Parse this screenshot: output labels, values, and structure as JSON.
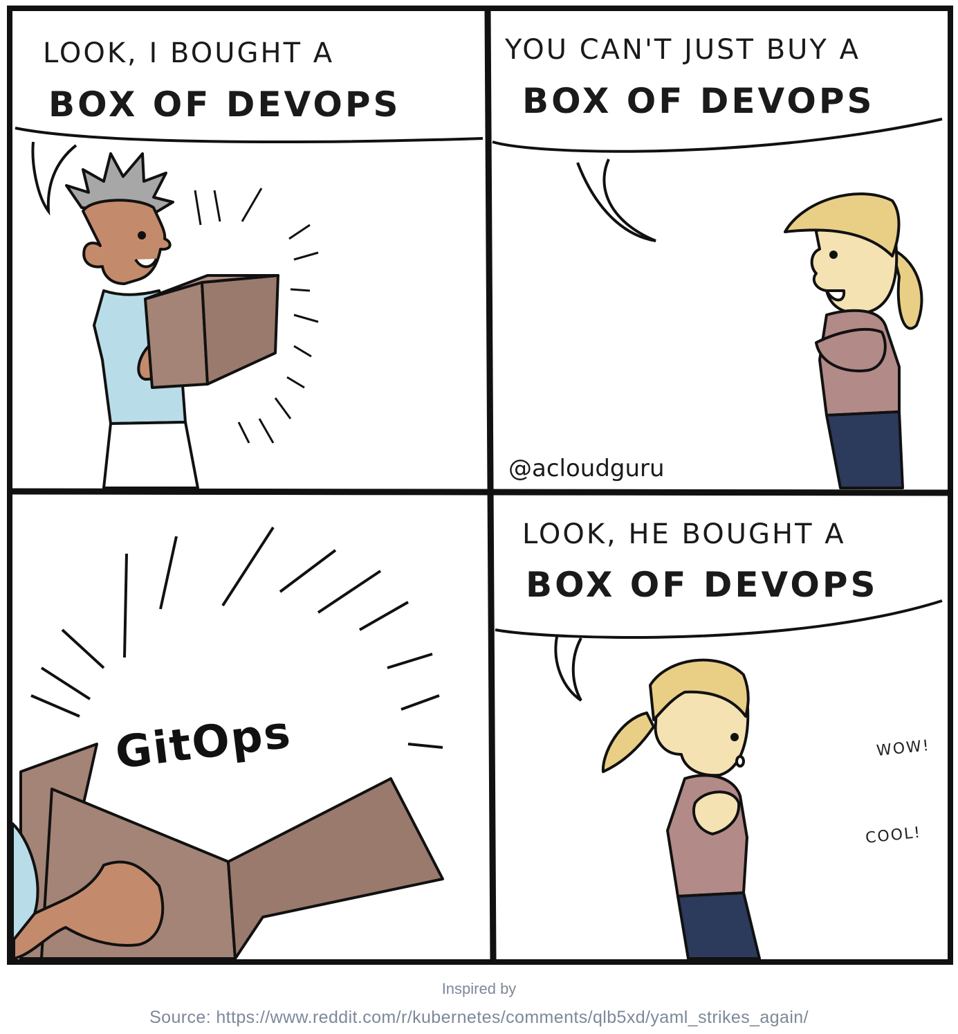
{
  "panels": {
    "p1": {
      "line1": "LOOK, I BOUGHT A",
      "line2": "BOX OF DEVOPS"
    },
    "p2": {
      "line1": "YOU CAN'T JUST BUY A",
      "line2": "BOX OF DEVOPS",
      "credit": "@acloudguru"
    },
    "p3": {
      "box_text": "GitOps"
    },
    "p4": {
      "line1": "LOOK, HE BOUGHT A",
      "line2": "BOX OF DEVOPS",
      "exclaim1": "WOW!",
      "exclaim2": "COOL!"
    }
  },
  "footer": {
    "inspired": "Inspired by",
    "source": "Source: https://www.reddit.com/r/kubernetes/comments/qlb5xd/yaml_strikes_again/"
  },
  "colors": {
    "skin_man": "#c48a6c",
    "hair_man": "#a7a7a7",
    "shirt_man": "#b9dde8",
    "box": "#a48476",
    "hair_woman": "#e9cf86",
    "skin_woman": "#f4e2b3",
    "shirt_woman": "#b28a87",
    "pants_woman": "#2c3a5c",
    "caption": "#7d8899"
  }
}
